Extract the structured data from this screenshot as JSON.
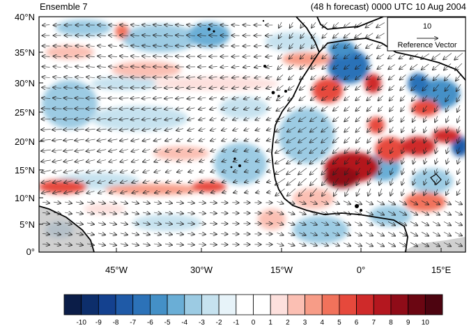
{
  "header": {
    "left_title": "Ensemble 7",
    "right_title": "(48 h forecast) 0000 UTC 10 Aug 2004"
  },
  "map": {
    "lat_labels": [
      "40°N",
      "35°N",
      "30°N",
      "25°N",
      "20°N",
      "15°N",
      "10°N",
      "5°N",
      "0°"
    ],
    "lon_labels": [
      "45°W",
      "30°W",
      "15°W",
      "0°",
      "15°E"
    ],
    "land_color": "#c8c8c8",
    "coast_color": "#000000"
  },
  "reference_vector": {
    "value": "10",
    "label": "Reference Vector"
  },
  "colorbar": {
    "labels": [
      "-10",
      "-9",
      "-8",
      "-7",
      "-6",
      "-5",
      "-4",
      "-3",
      "-2",
      "-1",
      "0",
      "1",
      "2",
      "3",
      "4",
      "5",
      "6",
      "7",
      "8",
      "9",
      "10"
    ],
    "colors": [
      "#0b1d48",
      "#0d2e6b",
      "#14418f",
      "#1f5aa7",
      "#2c72b8",
      "#4490c7",
      "#6aaed6",
      "#9ccbe3",
      "#c6e2ef",
      "#e7f3f9",
      "#ffffff",
      "#ffffff",
      "#fde0dd",
      "#fbbfb3",
      "#f79c87",
      "#f1725b",
      "#e6493c",
      "#cf2a2a",
      "#b4171f",
      "#8f0c18",
      "#6b0612",
      "#4d0410"
    ]
  }
}
